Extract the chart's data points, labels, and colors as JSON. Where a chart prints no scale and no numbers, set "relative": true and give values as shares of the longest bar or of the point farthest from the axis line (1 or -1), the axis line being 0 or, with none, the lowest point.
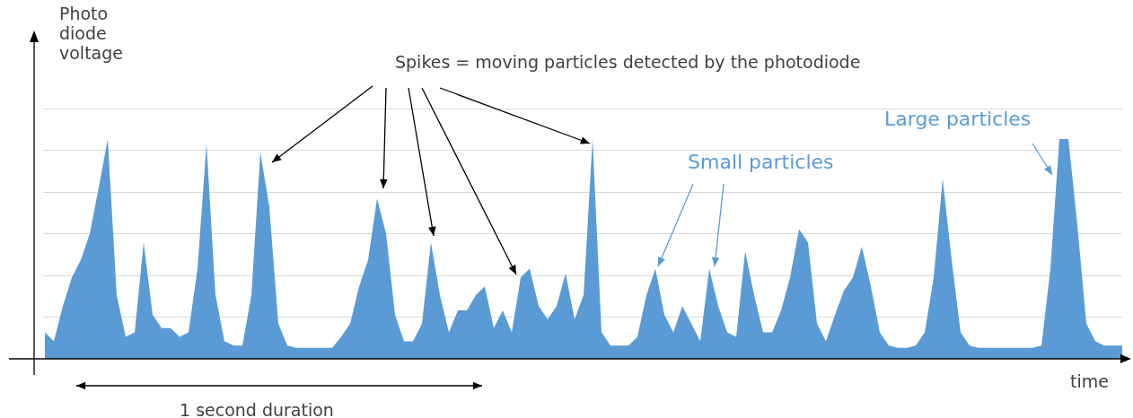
{
  "chart_data": {
    "type": "area",
    "relative": true,
    "grid": true,
    "ylabel": "Photo diode voltage",
    "xlabel": "time",
    "annotations": [
      "Spikes = moving particles detected by the photodiode",
      "Small particles",
      "Large particles",
      "1 second duration"
    ],
    "categories": [
      null,
      null,
      null,
      null,
      null,
      null,
      null,
      null,
      null,
      null,
      null,
      null,
      null,
      null,
      null,
      null,
      null,
      null,
      null,
      null,
      null,
      null,
      null,
      null,
      null,
      null,
      null,
      null,
      null,
      null,
      null,
      null,
      null,
      null,
      null,
      null,
      null,
      null,
      null,
      null,
      null,
      null,
      null,
      null,
      null,
      null,
      null,
      null,
      null,
      null,
      null,
      null,
      null,
      null,
      null,
      null,
      null,
      null,
      null,
      null,
      null,
      null,
      null,
      null,
      null,
      null,
      null,
      null,
      null,
      null,
      null,
      null,
      null,
      null,
      null,
      null,
      null,
      null,
      null,
      null,
      null,
      null,
      null,
      null,
      null,
      null,
      null,
      null,
      null,
      null,
      null,
      null,
      null,
      null,
      null,
      null,
      null,
      null,
      null,
      null,
      null,
      null,
      null,
      null,
      null,
      null,
      null,
      null,
      null,
      null,
      null,
      null,
      null,
      null,
      null,
      null,
      null,
      null,
      null,
      null,
      null
    ],
    "series": [
      {
        "color": "#5b9bd5",
        "values": [
          0.12,
          0.08,
          0.24,
          0.37,
          0.45,
          0.57,
          0.78,
          1,
          0.29,
          0.1,
          0.12,
          0.53,
          0.2,
          0.14,
          0.14,
          0.1,
          0.12,
          0.41,
          0.98,
          0.29,
          0.08,
          0.06,
          0.06,
          0.29,
          0.94,
          0.69,
          0.16,
          0.06,
          0.05,
          0.05,
          0.05,
          0.05,
          0.05,
          0.1,
          0.16,
          0.33,
          0.45,
          0.73,
          0.57,
          0.2,
          0.08,
          0.08,
          0.16,
          0.53,
          0.29,
          0.12,
          0.22,
          0.22,
          0.29,
          0.33,
          0.14,
          0.22,
          0.12,
          0.37,
          0.41,
          0.24,
          0.18,
          0.24,
          0.39,
          0.18,
          0.29,
          1,
          0.12,
          0.06,
          0.06,
          0.06,
          0.1,
          0.29,
          0.41,
          0.2,
          0.12,
          0.24,
          0.16,
          0.08,
          0.41,
          0.24,
          0.12,
          0.1,
          0.49,
          0.29,
          0.12,
          0.12,
          0.22,
          0.37,
          0.59,
          0.53,
          0.16,
          0.08,
          0.2,
          0.31,
          0.37,
          0.51,
          0.33,
          0.12,
          0.06,
          0.05,
          0.05,
          0.06,
          0.12,
          0.37,
          0.82,
          0.45,
          0.12,
          0.06,
          0.05,
          0.05,
          0.05,
          0.05,
          0.05,
          0.05,
          0.05,
          0.06,
          0.41,
          1,
          1,
          0.61,
          0.16,
          0.08,
          0.06,
          0.06,
          0.06
        ]
      }
    ]
  }
}
